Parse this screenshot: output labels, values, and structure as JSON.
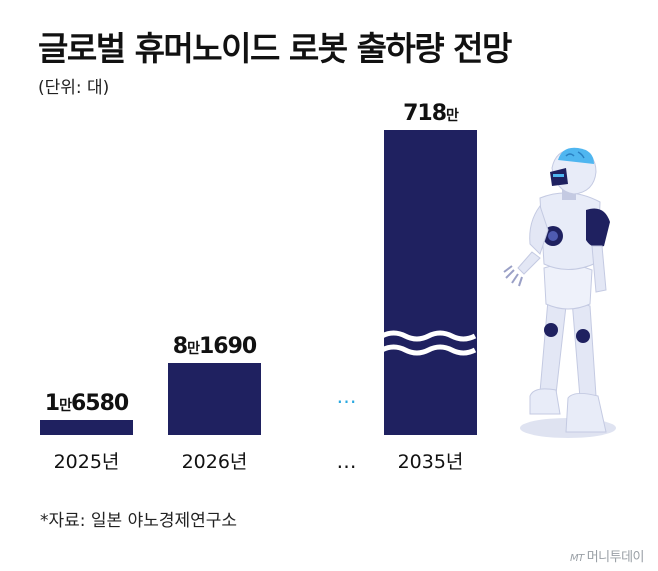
{
  "title": "글로벌 휴머노이드 로봇 출하량 전망",
  "unit_label": "(단위: 대)",
  "source": "*자료: 일본 야노경제연구소",
  "credit": {
    "mark": "MT",
    "name": "머니투데이"
  },
  "colors": {
    "bar": "#1f2160",
    "text": "#111111",
    "ellipsis_accent": "#29a8e0",
    "robot_body": "#e8ecf8",
    "robot_accent": "#1f2160",
    "robot_brain": "#4fb6f0"
  },
  "chart_data": {
    "type": "bar",
    "categories": [
      "2025년",
      "2026년",
      "…",
      "2035년"
    ],
    "values": [
      16580,
      81690,
      null,
      7180000
    ],
    "data_labels": [
      {
        "big1": "1",
        "small": "만",
        "big2": "6580"
      },
      {
        "big1": "8",
        "small": "만",
        "big2": "1690"
      },
      null,
      {
        "big1": "718",
        "small": "만",
        "big2": ""
      }
    ],
    "broken_axis_bar_index": 3,
    "gap_marker": "…",
    "grid": false,
    "legend": "none"
  }
}
